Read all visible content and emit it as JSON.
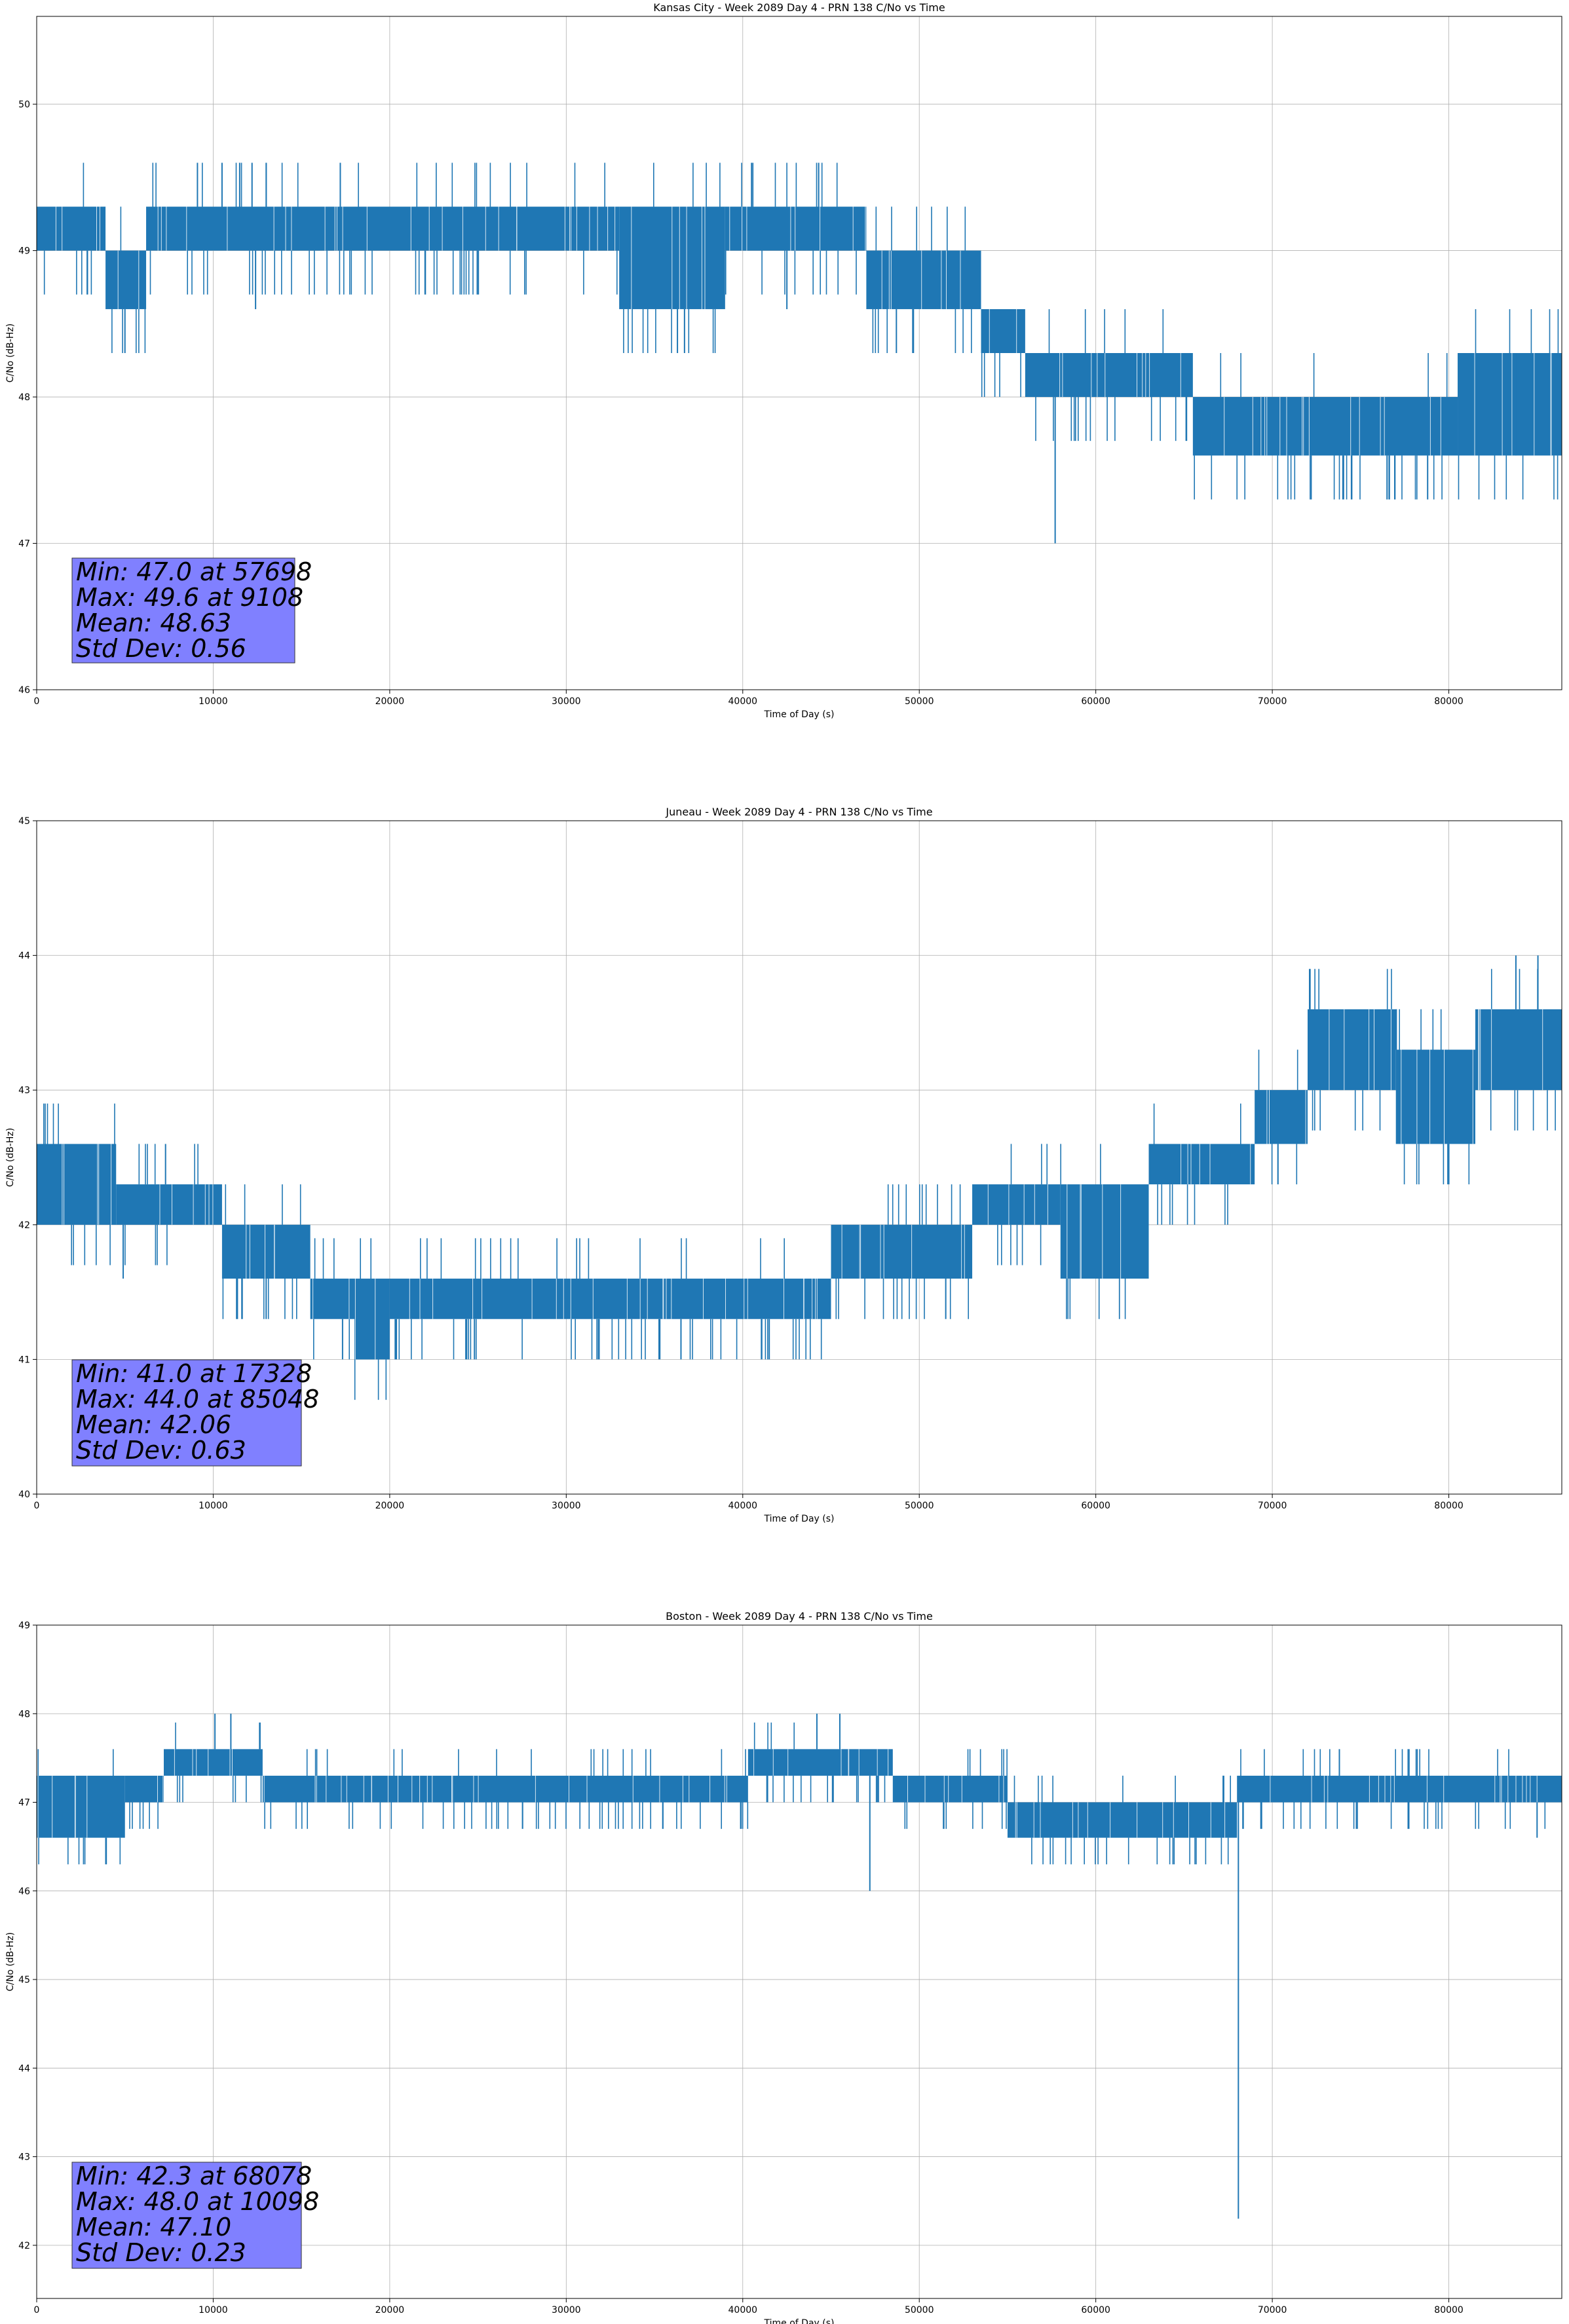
{
  "line_color": "#1f77b4",
  "stats_box_color": "#8080ff",
  "chart_data": [
    {
      "type": "line",
      "title": "Kansas City - Week 2089 Day 4 - PRN 138 C/No vs Time",
      "xlabel": "Time of Day (s)",
      "ylabel": "C/No (dB-Hz)",
      "xlim": [
        0,
        86400
      ],
      "ylim": [
        46,
        50.6
      ],
      "xticks": [
        0,
        10000,
        20000,
        30000,
        40000,
        50000,
        60000,
        70000,
        80000
      ],
      "yticks": [
        46,
        47,
        48,
        49,
        50
      ],
      "grid": true,
      "levels": [
        {
          "x": [
            0,
            3900
          ],
          "lo": 49.0,
          "hi": 49.3
        },
        {
          "x": [
            3900,
            6200
          ],
          "lo": 48.6,
          "hi": 49.0
        },
        {
          "x": [
            6200,
            33000
          ],
          "lo": 49.0,
          "hi": 49.3
        },
        {
          "x": [
            33000,
            39000
          ],
          "lo": 48.6,
          "hi": 49.3
        },
        {
          "x": [
            39000,
            47000
          ],
          "lo": 49.0,
          "hi": 49.3
        },
        {
          "x": [
            47000,
            53500
          ],
          "lo": 48.6,
          "hi": 49.0
        },
        {
          "x": [
            53500,
            56000
          ],
          "lo": 48.3,
          "hi": 48.6
        },
        {
          "x": [
            56000,
            65500
          ],
          "lo": 48.0,
          "hi": 48.3
        },
        {
          "x": [
            65500,
            80500
          ],
          "lo": 47.6,
          "hi": 48.0
        },
        {
          "x": [
            80500,
            86400
          ],
          "lo": 47.6,
          "hi": 48.3
        }
      ],
      "spikes": [
        {
          "x": 5000,
          "y": 48.3
        },
        {
          "x": 9108,
          "y": 49.6
        },
        {
          "x": 10500,
          "y": 49.6
        },
        {
          "x": 11500,
          "y": 49.6
        },
        {
          "x": 12200,
          "y": 49.6
        },
        {
          "x": 17200,
          "y": 49.6
        },
        {
          "x": 12400,
          "y": 48.6
        },
        {
          "x": 36300,
          "y": 48.3
        },
        {
          "x": 36700,
          "y": 48.3
        },
        {
          "x": 40500,
          "y": 49.6
        },
        {
          "x": 42000,
          "y": 49.0
        },
        {
          "x": 42500,
          "y": 48.6
        },
        {
          "x": 44300,
          "y": 49.6
        },
        {
          "x": 57698,
          "y": 47.0
        },
        {
          "x": 74000,
          "y": 47.3
        },
        {
          "x": 76500,
          "y": 47.3
        },
        {
          "x": 78800,
          "y": 47.3
        },
        {
          "x": 83800,
          "y": 48.3
        }
      ],
      "stats": [
        "Min: 47.0 at 57698",
        "Max: 49.6 at 9108",
        "Mean: 48.63",
        "Std Dev: 0.56"
      ]
    },
    {
      "type": "line",
      "title": "Juneau - Week 2089 Day 4 - PRN 138 C/No vs Time",
      "xlabel": "Time of Day (s)",
      "ylabel": "C/No (dB-Hz)",
      "xlim": [
        0,
        86400
      ],
      "ylim": [
        40,
        45
      ],
      "xticks": [
        0,
        10000,
        20000,
        30000,
        40000,
        50000,
        60000,
        70000,
        80000
      ],
      "yticks": [
        40,
        41,
        42,
        43,
        44,
        45
      ],
      "grid": true,
      "levels": [
        {
          "x": [
            0,
            4500
          ],
          "lo": 42.0,
          "hi": 42.6
        },
        {
          "x": [
            4500,
            10500
          ],
          "lo": 42.0,
          "hi": 42.3
        },
        {
          "x": [
            10500,
            15500
          ],
          "lo": 41.6,
          "hi": 42.0
        },
        {
          "x": [
            15500,
            18000
          ],
          "lo": 41.3,
          "hi": 41.6
        },
        {
          "x": [
            18000,
            20000
          ],
          "lo": 41.0,
          "hi": 41.6
        },
        {
          "x": [
            20000,
            45000
          ],
          "lo": 41.3,
          "hi": 41.6
        },
        {
          "x": [
            45000,
            53000
          ],
          "lo": 41.6,
          "hi": 42.0
        },
        {
          "x": [
            53000,
            58000
          ],
          "lo": 42.0,
          "hi": 42.3
        },
        {
          "x": [
            58000,
            63000
          ],
          "lo": 41.6,
          "hi": 42.3
        },
        {
          "x": [
            63000,
            69000
          ],
          "lo": 42.3,
          "hi": 42.6
        },
        {
          "x": [
            69000,
            72000
          ],
          "lo": 42.6,
          "hi": 43.0
        },
        {
          "x": [
            72000,
            77000
          ],
          "lo": 43.0,
          "hi": 43.6
        },
        {
          "x": [
            77000,
            81500
          ],
          "lo": 42.6,
          "hi": 43.3
        },
        {
          "x": [
            81500,
            86400
          ],
          "lo": 43.0,
          "hi": 43.6
        }
      ],
      "spikes": [
        {
          "x": 4900,
          "y": 41.6
        },
        {
          "x": 7300,
          "y": 42.6
        },
        {
          "x": 13000,
          "y": 41.3
        },
        {
          "x": 17328,
          "y": 41.0
        },
        {
          "x": 24800,
          "y": 41.0
        },
        {
          "x": 36500,
          "y": 41.0
        },
        {
          "x": 41500,
          "y": 41.0
        },
        {
          "x": 51500,
          "y": 41.3
        },
        {
          "x": 80000,
          "y": 42.3
        },
        {
          "x": 83800,
          "y": 44.0
        },
        {
          "x": 85048,
          "y": 44.0
        }
      ],
      "stats": [
        "Min: 41.0 at 17328",
        "Max: 44.0 at 85048",
        "Mean: 42.06",
        "Std Dev: 0.63"
      ]
    },
    {
      "type": "line",
      "title": "Boston - Week 2089 Day 4 - PRN 138 C/No vs Time",
      "xlabel": "Time of Day (s)",
      "ylabel": "C/No (dB-Hz)",
      "xlim": [
        0,
        86400
      ],
      "ylim": [
        41.4,
        49
      ],
      "xticks": [
        0,
        10000,
        20000,
        30000,
        40000,
        50000,
        60000,
        70000,
        80000
      ],
      "yticks": [
        42,
        43,
        44,
        45,
        46,
        47,
        48,
        49
      ],
      "grid": true,
      "levels": [
        {
          "x": [
            0,
            5000
          ],
          "lo": 46.6,
          "hi": 47.3
        },
        {
          "x": [
            5000,
            7200
          ],
          "lo": 47.0,
          "hi": 47.3
        },
        {
          "x": [
            7200,
            12800
          ],
          "lo": 47.3,
          "hi": 47.6
        },
        {
          "x": [
            12800,
            40300
          ],
          "lo": 47.0,
          "hi": 47.3
        },
        {
          "x": [
            40300,
            48500
          ],
          "lo": 47.3,
          "hi": 47.6
        },
        {
          "x": [
            48500,
            55000
          ],
          "lo": 47.0,
          "hi": 47.3
        },
        {
          "x": [
            55000,
            68000
          ],
          "lo": 46.6,
          "hi": 47.0
        },
        {
          "x": [
            68000,
            86400
          ],
          "lo": 47.0,
          "hi": 47.3
        }
      ],
      "spikes": [
        {
          "x": 10098,
          "y": 48.0
        },
        {
          "x": 11000,
          "y": 48.0
        },
        {
          "x": 44200,
          "y": 48.0
        },
        {
          "x": 45500,
          "y": 48.0
        },
        {
          "x": 47200,
          "y": 46.0
        },
        {
          "x": 68078,
          "y": 42.3
        },
        {
          "x": 73800,
          "y": 47.6
        },
        {
          "x": 85000,
          "y": 46.6
        }
      ],
      "stats": [
        "Min: 42.3 at 68078",
        "Max: 48.0 at 10098",
        "Mean: 47.10",
        "Std Dev: 0.23"
      ]
    }
  ]
}
